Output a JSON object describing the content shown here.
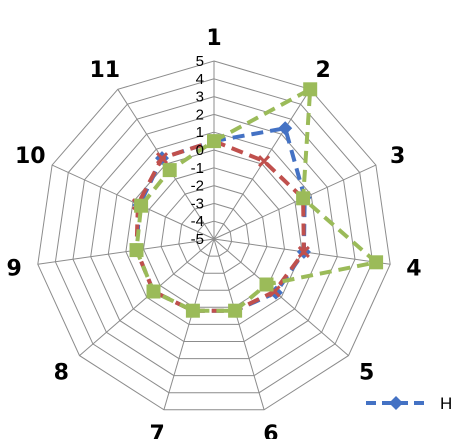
{
  "chart_data": {
    "type": "radar",
    "categories": [
      "1",
      "2",
      "3",
      "4",
      "5",
      "6",
      "7",
      "8",
      "9",
      "10",
      "11"
    ],
    "rmin": -5,
    "rmax": 5,
    "ticks": [
      "5",
      "4",
      "3",
      "2",
      "1",
      "0",
      "-1",
      "-2",
      "-3",
      "-4",
      "-5"
    ],
    "series": [
      {
        "name": "H",
        "color": "#4472C4",
        "marker": "diamond",
        "values": [
          0.5,
          2.4,
          0.6,
          0.1,
          -0.4,
          -0.8,
          -0.8,
          -0.5,
          -0.6,
          -0.4,
          0.4
        ]
      },
      {
        "color": "#C0504D",
        "marker": "x",
        "values": [
          0.5,
          0.2,
          0.5,
          0.1,
          -0.5,
          -0.8,
          -0.8,
          -0.5,
          -0.6,
          -0.3,
          0.4
        ]
      },
      {
        "color": "#9BBB59",
        "marker": "square",
        "values": [
          0.5,
          5.0,
          0.5,
          4.2,
          -1.1,
          -0.8,
          -0.8,
          -0.5,
          -0.6,
          -0.5,
          -0.4
        ]
      }
    ],
    "legend": {
      "position": "bottom-right"
    },
    "grid": true
  }
}
